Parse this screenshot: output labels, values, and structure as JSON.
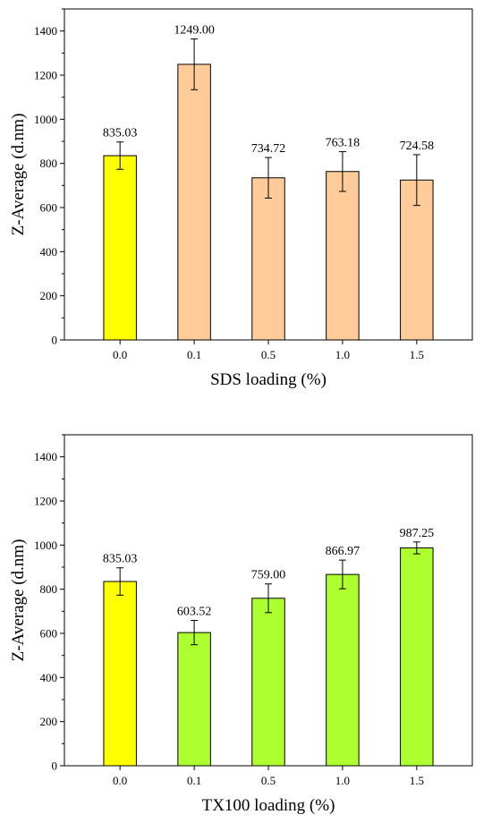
{
  "chart_data": [
    {
      "type": "bar",
      "xlabel": "SDS loading (%)",
      "ylabel": "Z-Average (d.nm)",
      "ylim": [
        0,
        1500
      ],
      "yticks": [
        0,
        200,
        400,
        600,
        800,
        1000,
        1200,
        1400
      ],
      "categories": [
        "0.0",
        "0.1",
        "0.5",
        "1.0",
        "1.5"
      ],
      "values": [
        835.03,
        1249.0,
        734.72,
        763.18,
        724.58
      ],
      "value_labels": [
        "835.03",
        "1249.00",
        "734.72",
        "763.18",
        "724.58"
      ],
      "errors": [
        62,
        115,
        92,
        90,
        115
      ],
      "bar_colors": [
        "#ffff00",
        "#ffcc99",
        "#ffcc99",
        "#ffcc99",
        "#ffcc99"
      ],
      "grid": false
    },
    {
      "type": "bar",
      "xlabel": "TX100 loading (%)",
      "ylabel": "Z-Average (d.nm)",
      "ylim": [
        0,
        1500
      ],
      "yticks": [
        0,
        200,
        400,
        600,
        800,
        1000,
        1200,
        1400
      ],
      "categories": [
        "0.0",
        "0.1",
        "0.5",
        "1.0",
        "1.5"
      ],
      "values": [
        835.03,
        603.52,
        759.0,
        866.97,
        987.25
      ],
      "value_labels": [
        "835.03",
        "603.52",
        "759.00",
        "866.97",
        "987.25"
      ],
      "errors": [
        62,
        55,
        65,
        65,
        27
      ],
      "bar_colors": [
        "#ffff00",
        "#adff2f",
        "#adff2f",
        "#adff2f",
        "#adff2f"
      ],
      "grid": false
    }
  ]
}
